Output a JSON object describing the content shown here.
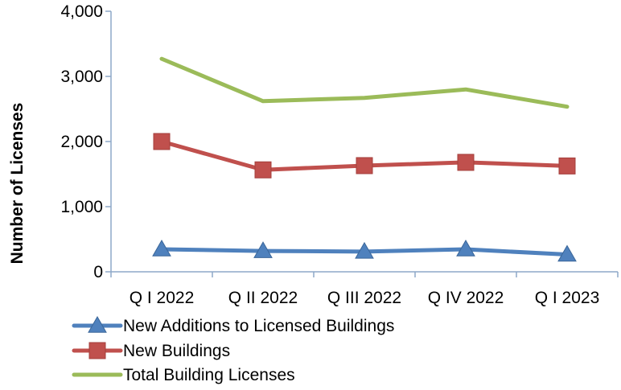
{
  "chart_data": {
    "type": "line",
    "categories": [
      "Q I 2022",
      "Q II 2022",
      "Q III 2022",
      "Q IV 2022",
      "Q I 2023"
    ],
    "ylabel": "Number of Licenses",
    "xlabel": "",
    "title": "",
    "ylim": [
      0,
      4000
    ],
    "yticks": [
      0,
      1000,
      2000,
      3000,
      4000
    ],
    "ytick_labels": [
      "0",
      "1,000",
      "2,000",
      "3,000",
      "4,000"
    ],
    "grid": false,
    "legend_position": "bottom",
    "series": [
      {
        "name": "New Additions to Licensed Buildings",
        "values": [
          345,
          320,
          310,
          345,
          265
        ],
        "color": "#4F81BD",
        "marker": "triangle"
      },
      {
        "name": "New Buildings",
        "values": [
          2000,
          1565,
          1630,
          1680,
          1625
        ],
        "color": "#C0504D",
        "marker": "square"
      },
      {
        "name": "Total Building Licenses",
        "values": [
          3270,
          2620,
          2670,
          2800,
          2535
        ],
        "color": "#9BBB59",
        "marker": "none"
      }
    ]
  }
}
